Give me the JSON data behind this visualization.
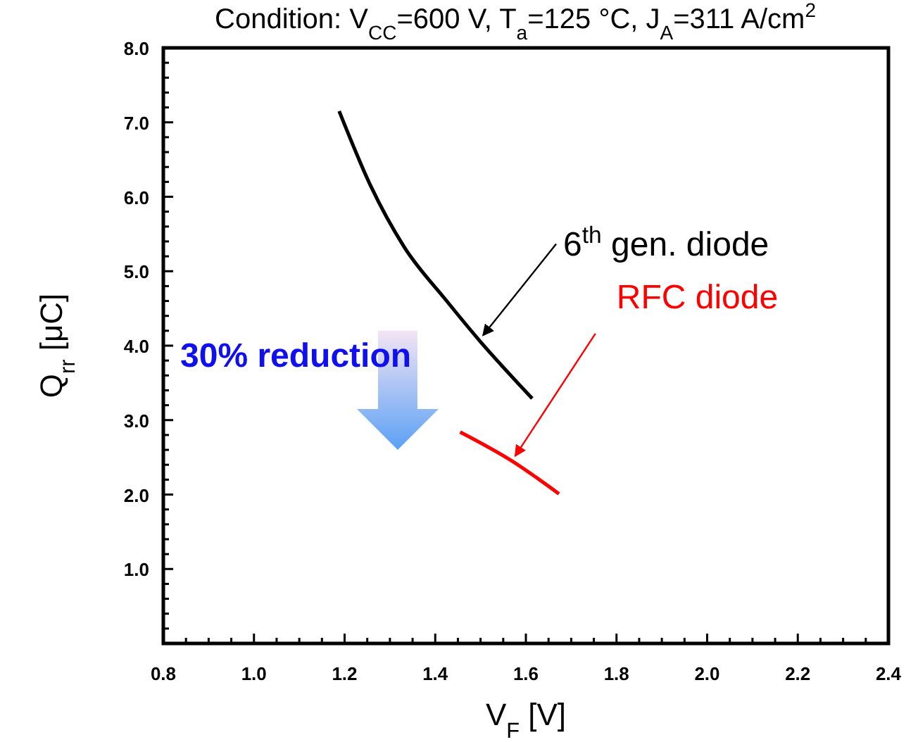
{
  "chart_data": {
    "type": "line",
    "title": "Condition: V$_{CC}$=600 V, T$_{a}$=125 °C, J$_{A}$=311 A/cm$^{2}$",
    "xlabel": "V$_{F}$ [V]",
    "ylabel": "Q$_{rr}$ [μC]",
    "series": [
      {
        "name": "6$^{th}$ gen. diode",
        "color": "#000000",
        "x": [
          1.188,
          1.258,
          1.331,
          1.424,
          1.496,
          1.614
        ],
        "values": [
          7.15,
          6.14,
          5.33,
          4.61,
          4.08,
          3.29
        ]
      },
      {
        "name": "RFC diode",
        "color": "#ff0000",
        "x": [
          1.455,
          1.567,
          1.673
        ],
        "values": [
          2.84,
          2.46,
          2.01
        ]
      }
    ],
    "annotations": [
      "30% reduction"
    ],
    "xlim": [
      0.8,
      2.4
    ],
    "ylim": [
      0,
      8
    ],
    "xticks": [
      0.8,
      {
        "value": 0.85,
        "label": null
      },
      {
        "value": 0.9,
        "label": null
      },
      {
        "value": 0.95,
        "label": null
      },
      {
        "value": 1.0,
        "label": "1.0"
      },
      {
        "value": 1.05,
        "label": null
      },
      {
        "value": 1.1,
        "label": null
      },
      {
        "value": 1.15,
        "label": null
      },
      1.2,
      {
        "value": 1.25,
        "label": null
      },
      {
        "value": 1.3,
        "label": null
      },
      {
        "value": 1.35,
        "label": null
      },
      1.4,
      {
        "value": 1.45,
        "label": null
      },
      {
        "value": 1.5,
        "label": null
      },
      {
        "value": 1.55,
        "label": null
      },
      1.6,
      {
        "value": 1.65,
        "label": null
      },
      {
        "value": 1.7,
        "label": null
      },
      {
        "value": 1.75,
        "label": null
      },
      1.8,
      {
        "value": 1.85,
        "label": null
      },
      {
        "value": 1.9,
        "label": null
      },
      {
        "value": 1.95,
        "label": null
      },
      {
        "value": 2.0,
        "label": "2.0"
      },
      {
        "value": 2.05,
        "label": null
      },
      {
        "value": 2.1,
        "label": null
      },
      {
        "value": 2.15,
        "label": null
      },
      2.2,
      {
        "value": 2.25,
        "label": null
      },
      {
        "value": 2.3,
        "label": null
      },
      {
        "value": 2.35,
        "label": null
      },
      2.4
    ],
    "yticks": [
      {
        "value": 0.2,
        "label": null
      },
      {
        "value": 0.4,
        "label": null
      },
      {
        "value": 0.6,
        "label": null
      },
      {
        "value": 0.8,
        "label": null
      },
      {
        "value": 1,
        "label": "1.0"
      },
      {
        "value": 1.2,
        "label": null
      },
      {
        "value": 1.4,
        "label": null
      },
      {
        "value": 1.6,
        "label": null
      },
      {
        "value": 1.8,
        "label": null
      },
      {
        "value": 2,
        "label": "2.0"
      },
      {
        "value": 2.2,
        "label": null
      },
      {
        "value": 2.4,
        "label": null
      },
      {
        "value": 2.6,
        "label": null
      },
      {
        "value": 2.8,
        "label": null
      },
      {
        "value": 3,
        "label": "3.0"
      },
      {
        "value": 3.2,
        "label": null
      },
      {
        "value": 3.4,
        "label": null
      },
      {
        "value": 3.6,
        "label": null
      },
      {
        "value": 3.8,
        "label": null
      },
      {
        "value": 4,
        "label": "4.0"
      },
      {
        "value": 4.2,
        "label": null
      },
      {
        "value": 4.4,
        "label": null
      },
      {
        "value": 4.6,
        "label": null
      },
      {
        "value": 4.8,
        "label": null
      },
      {
        "value": 5,
        "label": "5.0"
      },
      {
        "value": 5.2,
        "label": null
      },
      {
        "value": 5.4,
        "label": null
      },
      {
        "value": 5.6,
        "label": null
      },
      {
        "value": 5.8,
        "label": null
      },
      {
        "value": 6,
        "label": "6.0"
      },
      {
        "value": 6.2,
        "label": null
      },
      {
        "value": 6.4,
        "label": null
      },
      {
        "value": 6.6,
        "label": null
      },
      {
        "value": 6.8,
        "label": null
      },
      {
        "value": 7,
        "label": "7.0"
      },
      {
        "value": 7.2,
        "label": null
      },
      {
        "value": 7.4,
        "label": null
      },
      {
        "value": 7.6,
        "label": null
      },
      {
        "value": 7.8,
        "label": null
      },
      {
        "value": 8,
        "label": "8.0"
      }
    ],
    "grid": false,
    "marker": "none",
    "line_style": "solid"
  }
}
